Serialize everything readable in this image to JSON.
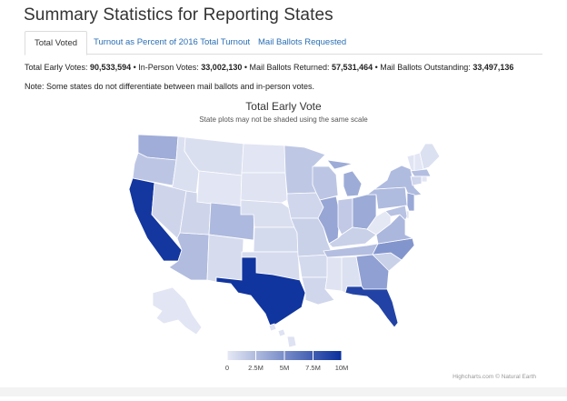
{
  "page": {
    "title": "Summary Statistics for Reporting States"
  },
  "tabs": [
    {
      "label": "Total Voted",
      "active": true
    },
    {
      "label": "Turnout as Percent of 2016 Total Turnout",
      "active": false
    },
    {
      "label": "Mail Ballots Requested",
      "active": false
    }
  ],
  "stats": {
    "early_label": "Total Early Votes: ",
    "early_value": "90,533,594",
    "sep1": " • ",
    "inperson_label": "In-Person Votes: ",
    "inperson_value": "33,002,130",
    "sep2": " • ",
    "returned_label": "Mail Ballots Returned: ",
    "returned_value": "57,531,464",
    "sep3": " • ",
    "outstanding_label": "Mail Ballots Outstanding: ",
    "outstanding_value": "33,497,136"
  },
  "note": "Note: Some states do not differentiate between mail ballots and in-person votes.",
  "credits": "Highcharts.com © Natural Earth",
  "colors": {
    "tab_link": "#2a6fb5",
    "scale_min": "#e6e9f5",
    "scale_max": "#0a2f9b"
  },
  "chart_data": {
    "type": "choropleth-map",
    "title": "Total Early Vote",
    "subtitle": "State plots may not be shaded using the same scale",
    "color_axis": {
      "min": 0,
      "max": 10000000,
      "tick_labels": [
        "0",
        "2.5M",
        "5M",
        "7.5M",
        "10M"
      ],
      "min_color": "#e6e9f5",
      "max_color": "#0a2f9b"
    },
    "states": [
      {
        "code": "WA",
        "value": 3200000
      },
      {
        "code": "OR",
        "value": 1900000
      },
      {
        "code": "CA",
        "value": 9600000
      },
      {
        "code": "ID",
        "value": 500000
      },
      {
        "code": "NV",
        "value": 1100000
      },
      {
        "code": "AZ",
        "value": 2400000
      },
      {
        "code": "UT",
        "value": 1100000
      },
      {
        "code": "MT",
        "value": 550000
      },
      {
        "code": "WY",
        "value": 200000
      },
      {
        "code": "CO",
        "value": 2600000
      },
      {
        "code": "NM",
        "value": 750000
      },
      {
        "code": "ND",
        "value": 200000
      },
      {
        "code": "SD",
        "value": 300000
      },
      {
        "code": "NE",
        "value": 550000
      },
      {
        "code": "KS",
        "value": 800000
      },
      {
        "code": "OK",
        "value": 750000
      },
      {
        "code": "TX",
        "value": 9700000
      },
      {
        "code": "MN",
        "value": 1800000
      },
      {
        "code": "IA",
        "value": 1000000
      },
      {
        "code": "MO",
        "value": 1300000
      },
      {
        "code": "AR",
        "value": 800000
      },
      {
        "code": "LA",
        "value": 1000000
      },
      {
        "code": "WI",
        "value": 1900000
      },
      {
        "code": "IL",
        "value": 3600000
      },
      {
        "code": "MI",
        "value": 3300000
      },
      {
        "code": "IN",
        "value": 1700000
      },
      {
        "code": "OH",
        "value": 3400000
      },
      {
        "code": "KY",
        "value": 1300000
      },
      {
        "code": "TN",
        "value": 2300000
      },
      {
        "code": "MS",
        "value": 300000
      },
      {
        "code": "AL",
        "value": 450000
      },
      {
        "code": "GA",
        "value": 3900000
      },
      {
        "code": "FL",
        "value": 8900000
      },
      {
        "code": "SC",
        "value": 1300000
      },
      {
        "code": "NC",
        "value": 4500000
      },
      {
        "code": "VA",
        "value": 2700000
      },
      {
        "code": "WV",
        "value": 100000
      },
      {
        "code": "PA",
        "value": 2500000
      },
      {
        "code": "NY",
        "value": 2500000
      },
      {
        "code": "VT",
        "value": 250000
      },
      {
        "code": "NH",
        "value": 150000
      },
      {
        "code": "ME",
        "value": 450000
      },
      {
        "code": "MA",
        "value": 2300000
      },
      {
        "code": "RI",
        "value": 200000
      },
      {
        "code": "CT",
        "value": 1000000
      },
      {
        "code": "NJ",
        "value": 3500000
      },
      {
        "code": "DE",
        "value": 300000
      },
      {
        "code": "MD",
        "value": 2100000
      },
      {
        "code": "AK",
        "value": 200000
      },
      {
        "code": "HI",
        "value": 350000
      }
    ]
  }
}
